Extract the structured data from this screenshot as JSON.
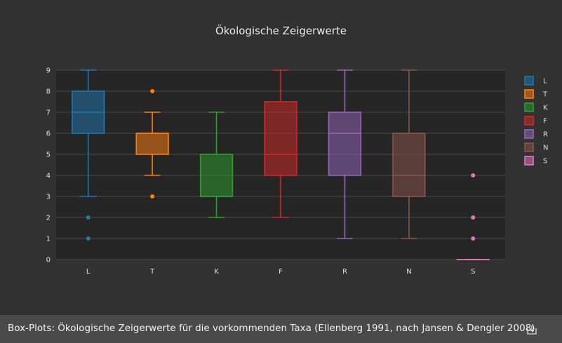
{
  "chart_data": {
    "type": "box",
    "title": "Ökologische Zeigerwerte",
    "categories": [
      "L",
      "T",
      "K",
      "F",
      "R",
      "N",
      "S"
    ],
    "ylim": [
      0,
      9
    ],
    "yticks": [
      0,
      1,
      2,
      3,
      4,
      5,
      6,
      7,
      8,
      9
    ],
    "grid": true,
    "legend_position": "right",
    "series": [
      {
        "name": "L",
        "color": "#1f77b4",
        "min": 3,
        "q1": 6,
        "median": 7,
        "q3": 8,
        "max": 9,
        "outliers": [
          2,
          1
        ]
      },
      {
        "name": "T",
        "color": "#ff7f0e",
        "min": 4,
        "q1": 5,
        "median": 6,
        "q3": 6,
        "max": 7,
        "outliers": [
          8,
          3
        ]
      },
      {
        "name": "K",
        "color": "#2ca02c",
        "min": 2,
        "q1": 3,
        "median": 3,
        "q3": 5,
        "max": 7,
        "outliers": []
      },
      {
        "name": "F",
        "color": "#d62728",
        "min": 2,
        "q1": 4,
        "median": 5,
        "q3": 7.5,
        "max": 9,
        "outliers": []
      },
      {
        "name": "R",
        "color": "#9467bd",
        "min": 1,
        "q1": 4,
        "median": 6,
        "q3": 7,
        "max": 9,
        "outliers": []
      },
      {
        "name": "N",
        "color": "#8c564b",
        "min": 1,
        "q1": 3,
        "median": 4,
        "q3": 6,
        "max": 9,
        "outliers": []
      },
      {
        "name": "S",
        "color": "#e377c2",
        "min": 0,
        "q1": 0,
        "median": 0,
        "q3": 0,
        "max": 0,
        "outliers": [
          4,
          2,
          1
        ]
      }
    ]
  },
  "caption": {
    "text": "Box-Plots: Ökologische Zeigerwerte für die vorkommenden Taxa (Ellenberg 1991, nach Jansen & Dengler 2008)",
    "icon": "download-icon"
  }
}
